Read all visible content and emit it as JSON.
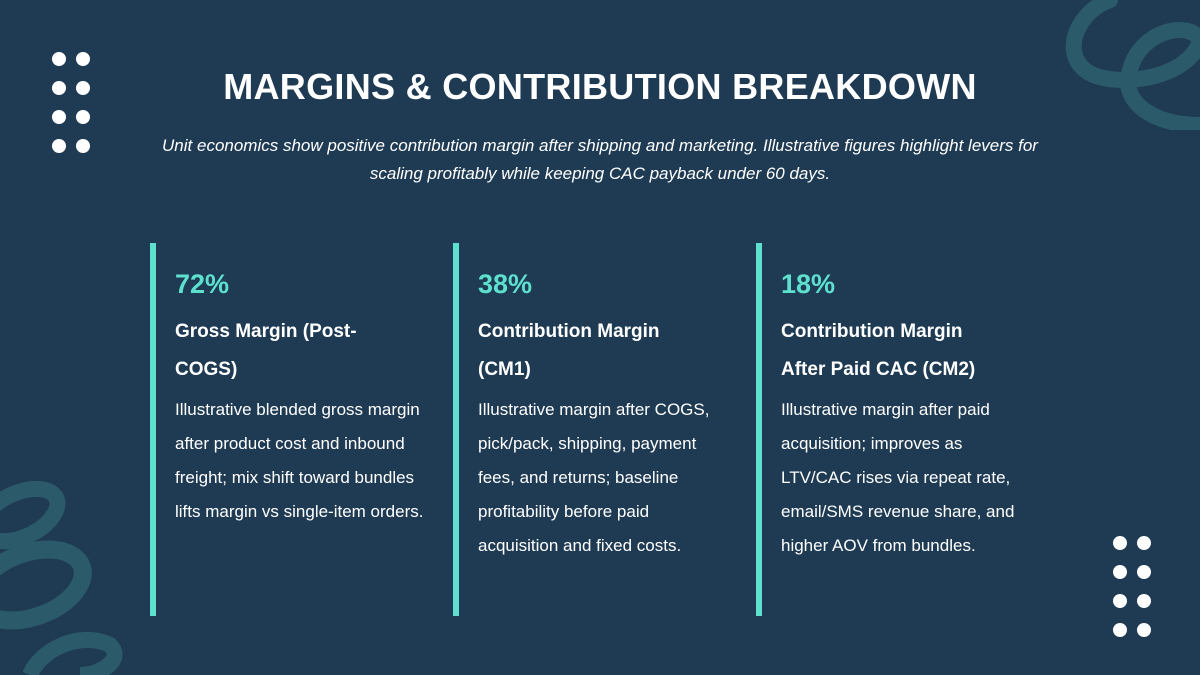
{
  "title": "MARGINS & CONTRIBUTION BREAKDOWN",
  "subtitle": "Unit economics show positive contribution margin after shipping and marketing. Illustrative figures highlight levers for scaling profitably while keeping CAC payback under 60 days.",
  "colors": {
    "background": "#1f3b53",
    "accent": "#5ee0cf",
    "swirl": "#2b5a6b"
  },
  "cards": [
    {
      "value": "72%",
      "title": "Gross Margin (Post-COGS)",
      "body": "Illustrative blended gross margin after product cost and inbound freight; mix shift toward bundles lifts margin vs single-item orders."
    },
    {
      "value": "38%",
      "title": "Contribution Margin (CM1)",
      "body": "Illustrative margin after COGS, pick/pack, shipping, payment fees, and returns; baseline profitability before paid acquisition and fixed costs."
    },
    {
      "value": "18%",
      "title": "Contribution Margin After Paid CAC (CM2)",
      "body": "Illustrative margin after paid acquisition; improves as LTV/CAC rises via repeat rate, email/SMS revenue share, and higher AOV from bundles."
    }
  ]
}
